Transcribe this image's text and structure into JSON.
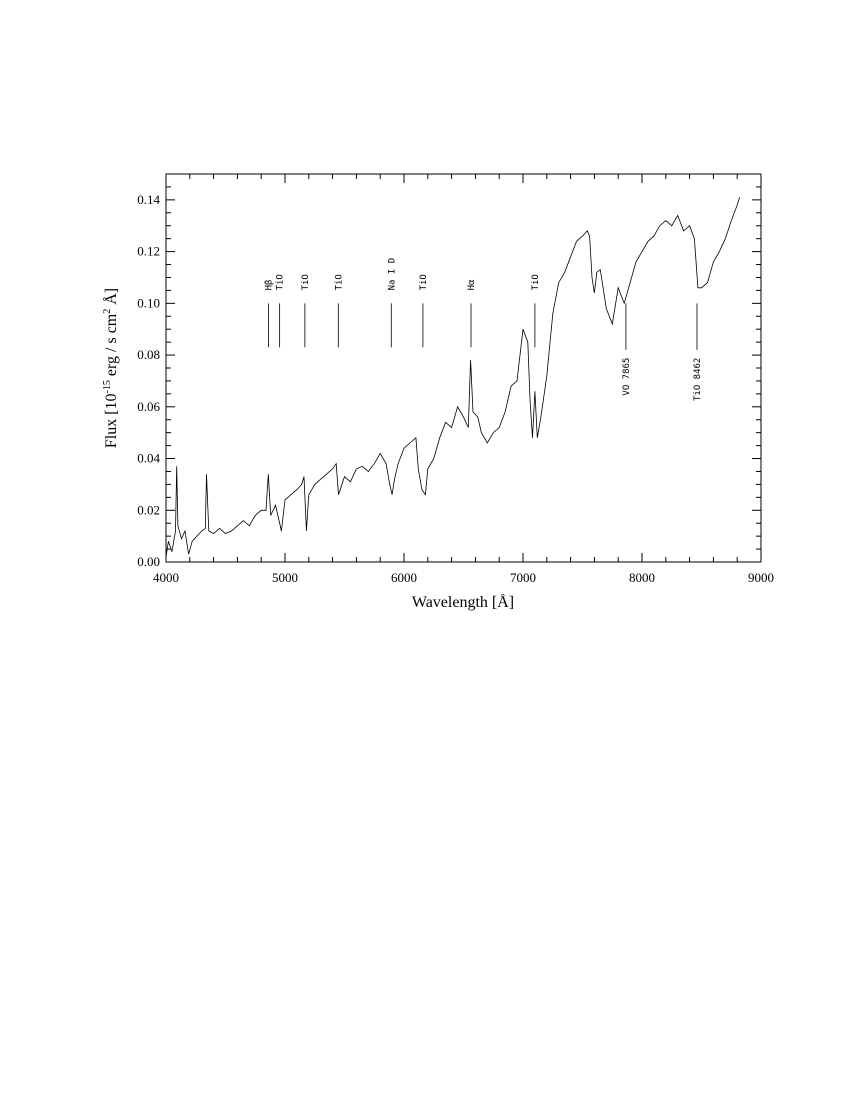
{
  "chart_data": {
    "type": "line",
    "xlabel": "Wavelength [Å]",
    "ylabel": {
      "prefix": "Flux [10",
      "exponent": "-15",
      "middle": " erg / s cm",
      "exponent2": "2",
      "suffix": " Å]"
    },
    "xlim": [
      4000,
      9000
    ],
    "ylim": [
      0,
      0.15
    ],
    "x_ticks": [
      4000,
      5000,
      6000,
      7000,
      8000,
      9000
    ],
    "x_tick_labels": [
      "4000",
      "5000",
      "6000",
      "7000",
      "8000",
      "9000"
    ],
    "y_ticks": [
      0,
      0.02,
      0.04,
      0.06,
      0.08,
      0.1,
      0.12,
      0.14
    ],
    "y_tick_labels": [
      "0.00",
      "0.02",
      "0.04",
      "0.06",
      "0.08",
      "0.10",
      "0.12",
      "0.14"
    ],
    "grid": false,
    "series": [
      {
        "color": "#000000",
        "x": [
          4000,
          4020,
          4050,
          4080,
          4090,
          4100,
          4130,
          4160,
          4190,
          4220,
          4260,
          4300,
          4330,
          4340,
          4360,
          4400,
          4450,
          4500,
          4550,
          4600,
          4650,
          4700,
          4750,
          4800,
          4840,
          4860,
          4880,
          4920,
          4950,
          4970,
          5000,
          5050,
          5100,
          5140,
          5160,
          5180,
          5200,
          5250,
          5300,
          5350,
          5400,
          5430,
          5450,
          5500,
          5550,
          5600,
          5650,
          5700,
          5750,
          5800,
          5850,
          5880,
          5900,
          5920,
          5950,
          6000,
          6050,
          6100,
          6120,
          6150,
          6180,
          6200,
          6250,
          6300,
          6350,
          6400,
          6450,
          6500,
          6540,
          6560,
          6580,
          6620,
          6650,
          6700,
          6750,
          6800,
          6850,
          6900,
          6950,
          7000,
          7040,
          7060,
          7080,
          7100,
          7120,
          7150,
          7200,
          7250,
          7300,
          7350,
          7400,
          7450,
          7500,
          7540,
          7560,
          7580,
          7600,
          7620,
          7650,
          7700,
          7750,
          7800,
          7850,
          7900,
          7950,
          8000,
          8050,
          8100,
          8150,
          8200,
          8250,
          8300,
          8350,
          8400,
          8440,
          8470,
          8500,
          8550,
          8600,
          8650,
          8700,
          8750,
          8800,
          8820
        ],
        "y": [
          0.002,
          0.008,
          0.004,
          0.012,
          0.037,
          0.014,
          0.009,
          0.012,
          0.003,
          0.008,
          0.01,
          0.012,
          0.013,
          0.034,
          0.012,
          0.011,
          0.013,
          0.011,
          0.012,
          0.014,
          0.016,
          0.014,
          0.018,
          0.02,
          0.02,
          0.034,
          0.018,
          0.022,
          0.016,
          0.012,
          0.024,
          0.026,
          0.028,
          0.03,
          0.033,
          0.012,
          0.026,
          0.03,
          0.032,
          0.034,
          0.036,
          0.038,
          0.026,
          0.033,
          0.031,
          0.036,
          0.037,
          0.035,
          0.038,
          0.042,
          0.038,
          0.03,
          0.026,
          0.032,
          0.038,
          0.044,
          0.046,
          0.048,
          0.036,
          0.028,
          0.026,
          0.036,
          0.04,
          0.048,
          0.054,
          0.052,
          0.06,
          0.056,
          0.052,
          0.078,
          0.058,
          0.056,
          0.05,
          0.046,
          0.05,
          0.052,
          0.058,
          0.068,
          0.07,
          0.09,
          0.085,
          0.062,
          0.048,
          0.066,
          0.048,
          0.056,
          0.072,
          0.096,
          0.108,
          0.112,
          0.118,
          0.124,
          0.126,
          0.128,
          0.126,
          0.11,
          0.104,
          0.112,
          0.113,
          0.098,
          0.092,
          0.106,
          0.1,
          0.108,
          0.116,
          0.12,
          0.124,
          0.126,
          0.13,
          0.132,
          0.13,
          0.134,
          0.128,
          0.13,
          0.125,
          0.106,
          0.106,
          0.108,
          0.116,
          0.12,
          0.125,
          0.132,
          0.138,
          0.141
        ]
      }
    ],
    "annotations": [
      {
        "label": "Hβ",
        "x": 4861,
        "position": "above"
      },
      {
        "label": "TiO",
        "x": 4955,
        "position": "above"
      },
      {
        "label": "TiO",
        "x": 5167,
        "position": "above"
      },
      {
        "label": "TiO",
        "x": 5448,
        "position": "above"
      },
      {
        "label": "Na I D",
        "x": 5893,
        "position": "above"
      },
      {
        "label": "TiO",
        "x": 6159,
        "position": "above"
      },
      {
        "label": "Hα",
        "x": 6563,
        "position": "above"
      },
      {
        "label": "TiO",
        "x": 7100,
        "position": "above"
      },
      {
        "label": "VO 7865",
        "x": 7865,
        "position": "below"
      },
      {
        "label": "TiO 8462",
        "x": 8462,
        "position": "below"
      }
    ]
  }
}
